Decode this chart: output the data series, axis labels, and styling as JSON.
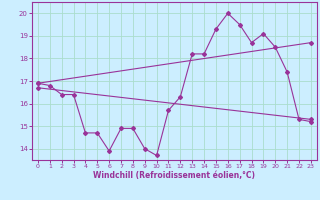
{
  "xlabel": "Windchill (Refroidissement éolien,°C)",
  "ylabel": "",
  "background_color": "#cceeff",
  "grid_color": "#aaddcc",
  "line_color": "#993399",
  "x_hours": [
    0,
    1,
    2,
    3,
    4,
    5,
    6,
    7,
    8,
    9,
    10,
    11,
    12,
    13,
    14,
    15,
    16,
    17,
    18,
    19,
    20,
    21,
    22,
    23
  ],
  "windchill": [
    16.9,
    16.8,
    16.4,
    16.4,
    14.7,
    14.7,
    13.9,
    14.9,
    14.9,
    14.0,
    13.7,
    15.7,
    16.3,
    18.2,
    18.2,
    19.3,
    20.0,
    19.5,
    18.7,
    19.1,
    18.5,
    17.4,
    15.3,
    15.2
  ],
  "trend1_x": [
    0,
    23
  ],
  "trend1_y": [
    16.9,
    18.7
  ],
  "trend2_x": [
    0,
    23
  ],
  "trend2_y": [
    16.7,
    15.3
  ],
  "ylim": [
    13.5,
    20.5
  ],
  "xlim": [
    -0.5,
    23.5
  ]
}
